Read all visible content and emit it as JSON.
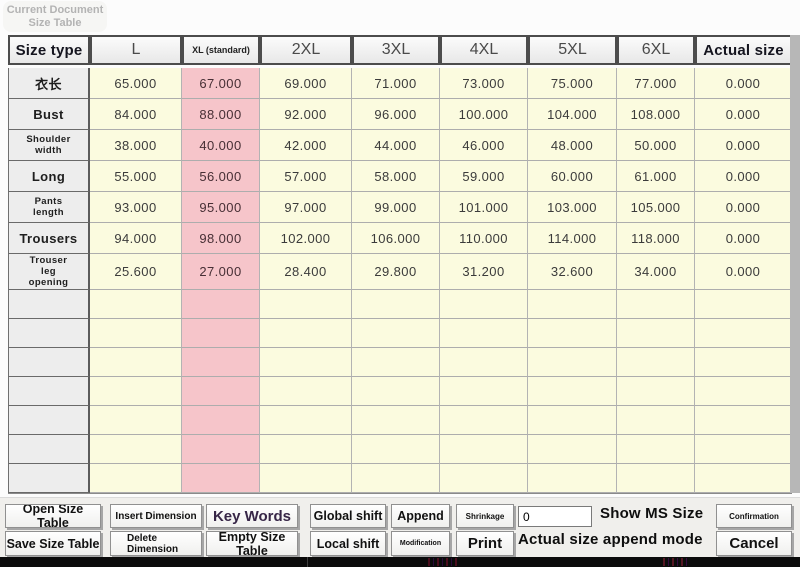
{
  "window": {
    "doc_label": "Current Document\nSize Table"
  },
  "table": {
    "columns": [
      "Size type",
      "L",
      "XL (standard)",
      "2XL",
      "3XL",
      "4XL",
      "5XL",
      "6XL",
      "Actual size"
    ],
    "standard_column_index": 2,
    "rows": [
      {
        "label": "衣长",
        "label_style": "cn",
        "values": [
          "65.000",
          "67.000",
          "69.000",
          "71.000",
          "73.000",
          "75.000",
          "77.000"
        ],
        "actual": "0.000"
      },
      {
        "label": "Bust",
        "label_style": "lg",
        "values": [
          "84.000",
          "88.000",
          "92.000",
          "96.000",
          "100.000",
          "104.000",
          "108.000"
        ],
        "actual": "0.000"
      },
      {
        "label": "Shoulder\nwidth",
        "label_style": "sm",
        "values": [
          "38.000",
          "40.000",
          "42.000",
          "44.000",
          "46.000",
          "48.000",
          "50.000"
        ],
        "actual": "0.000"
      },
      {
        "label": "Long",
        "label_style": "lg",
        "values": [
          "55.000",
          "56.000",
          "57.000",
          "58.000",
          "59.000",
          "60.000",
          "61.000"
        ],
        "actual": "0.000"
      },
      {
        "label": "Pants\nlength",
        "label_style": "sm",
        "values": [
          "93.000",
          "95.000",
          "97.000",
          "99.000",
          "101.000",
          "103.000",
          "105.000"
        ],
        "actual": "0.000"
      },
      {
        "label": "Trousers",
        "label_style": "lg",
        "values": [
          "94.000",
          "98.000",
          "102.000",
          "106.000",
          "110.000",
          "114.000",
          "118.000"
        ],
        "actual": "0.000"
      },
      {
        "label": "Trouser\nleg\nopening",
        "label_style": "sm",
        "tall": true,
        "values": [
          "25.600",
          "27.000",
          "28.400",
          "29.800",
          "31.200",
          "32.600",
          "34.000"
        ],
        "actual": "0.000"
      }
    ],
    "empty_row_count": 7
  },
  "toolbar": {
    "open_label": "Open Size Table",
    "save_label": "Save Size Table",
    "insert_label": "Insert Dimension",
    "delete_label": "Delete\nDimension",
    "keywords_label": "Key Words",
    "empty_label": "Empty Size Table",
    "global_shift_label": "Global shift",
    "local_shift_label": "Local shift",
    "append_label": "Append",
    "modification_label": "Modification",
    "shrinkage_label": "Shrinkage",
    "print_label": "Print",
    "ms_input_value": "0",
    "show_ms_label": "Show MS Size",
    "append_mode_label": "Actual size append mode",
    "confirm_label": "Confirmation",
    "cancel_label": "Cancel"
  },
  "colors": {
    "cell_yellow": "#FBFBDF",
    "standard_pink": "#F6C5CA",
    "label_gray": "#EDEDED",
    "keywords_text": "#372647"
  }
}
